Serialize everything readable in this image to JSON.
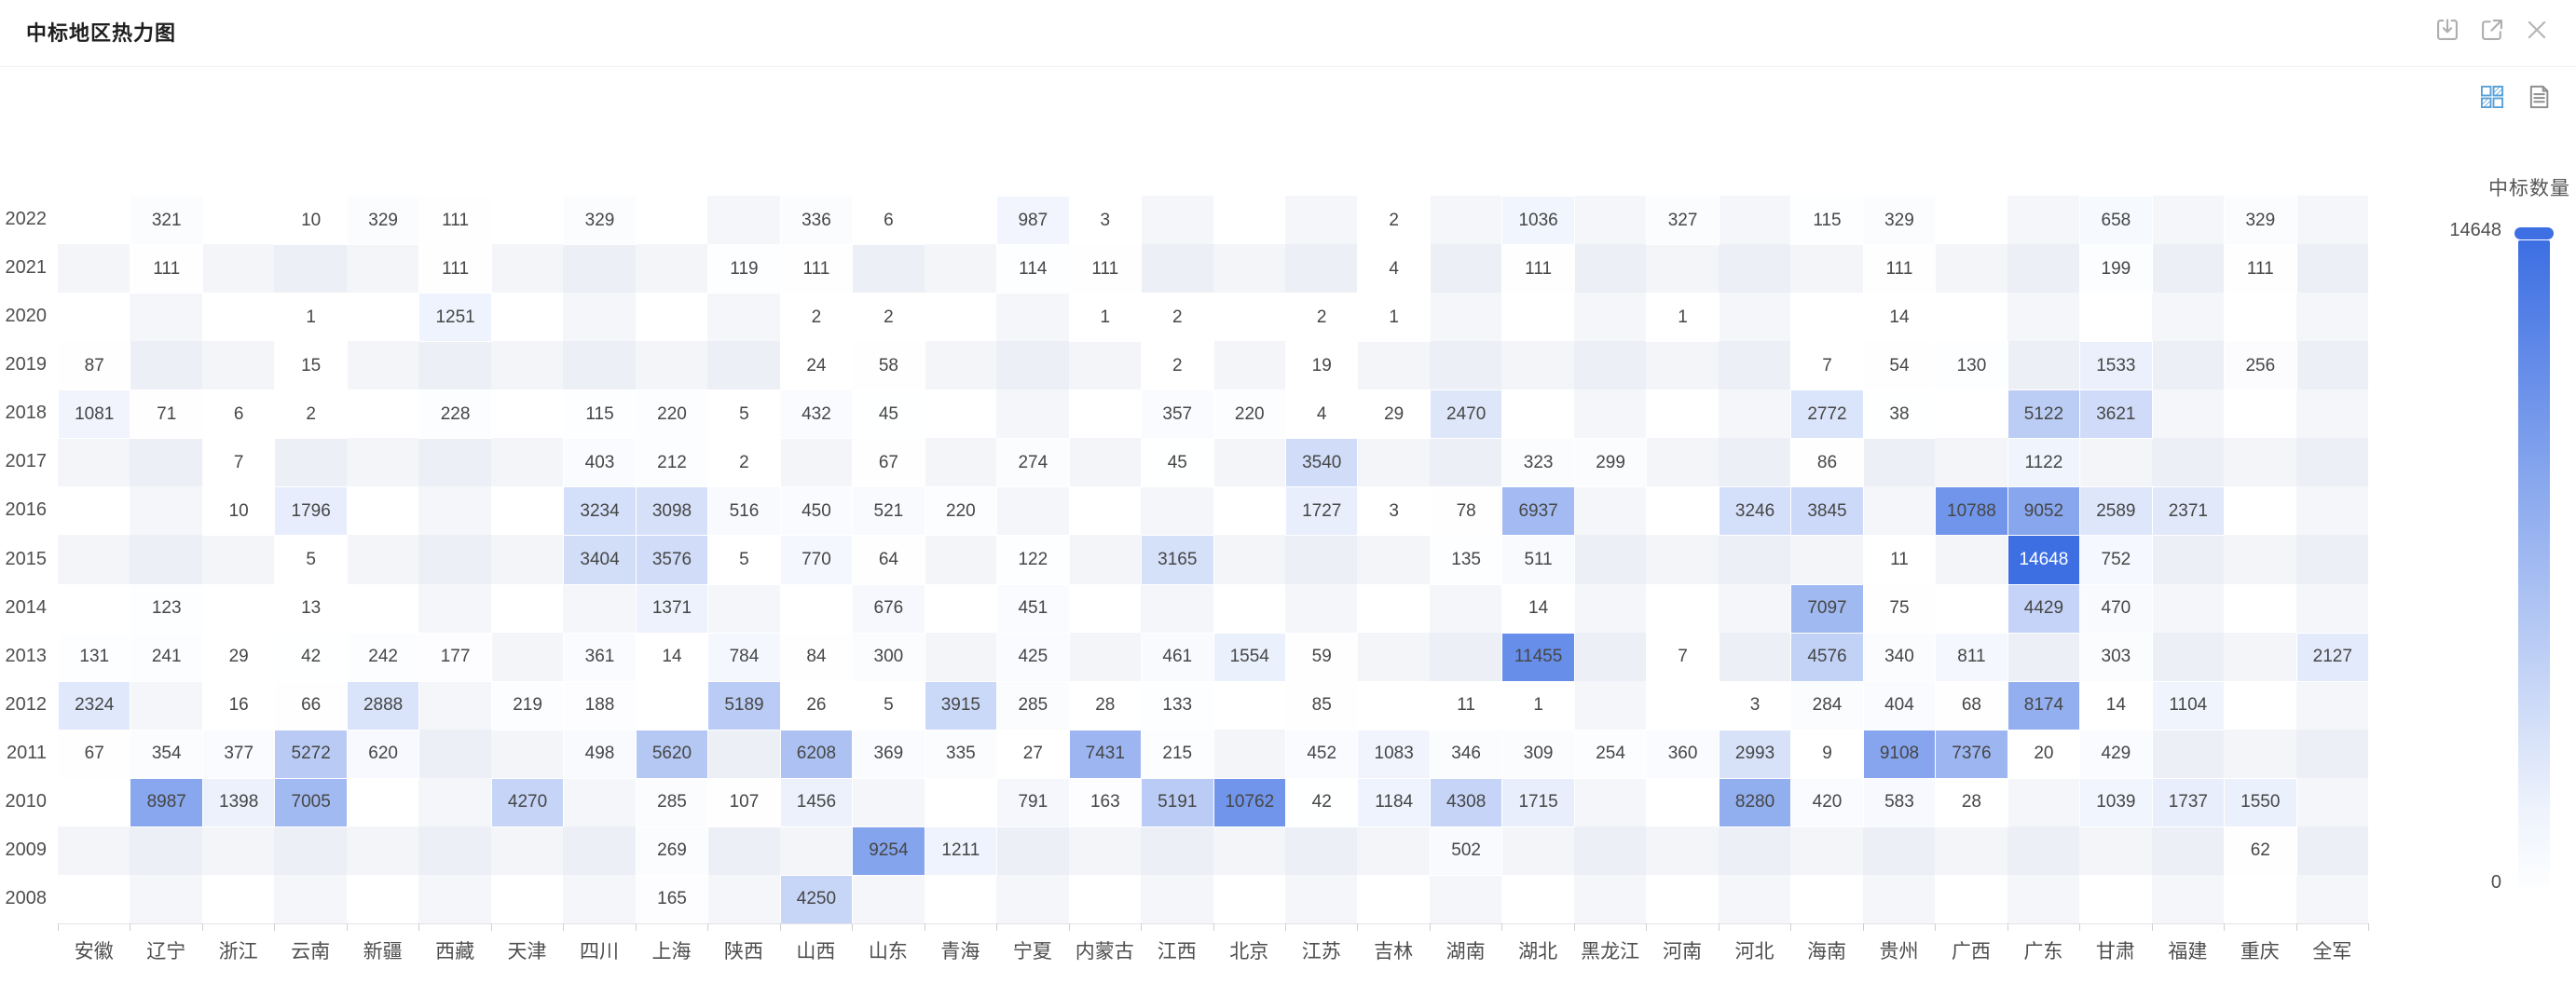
{
  "header": {
    "title": "中标地区热力图",
    "icons": [
      {
        "name": "download-icon"
      },
      {
        "name": "external-link-icon"
      },
      {
        "name": "close-icon"
      }
    ]
  },
  "view_toggle": {
    "chart_view": {
      "name": "heatmap-view-icon",
      "active": true
    },
    "data_view": {
      "name": "data-view-icon",
      "active": false
    }
  },
  "chart_data": {
    "type": "heatmap",
    "title": "中标地区热力图",
    "x_categories": [
      "安徽",
      "辽宁",
      "浙江",
      "云南",
      "新疆",
      "西藏",
      "天津",
      "四川",
      "上海",
      "陕西",
      "山西",
      "山东",
      "青海",
      "宁夏",
      "内蒙古",
      "江西",
      "北京",
      "江苏",
      "吉林",
      "湖南",
      "湖北",
      "黑龙江",
      "河南",
      "河北",
      "海南",
      "贵州",
      "广西",
      "广东",
      "甘肃",
      "福建",
      "重庆",
      "全军"
    ],
    "y_categories": [
      "2022",
      "2021",
      "2020",
      "2019",
      "2018",
      "2017",
      "2016",
      "2015",
      "2014",
      "2013",
      "2012",
      "2011",
      "2010",
      "2009",
      "2008"
    ],
    "values": [
      [
        null,
        321,
        null,
        10,
        329,
        111,
        null,
        329,
        null,
        null,
        336,
        6,
        null,
        987,
        3,
        null,
        null,
        null,
        2,
        null,
        1036,
        null,
        327,
        null,
        115,
        329,
        null,
        null,
        658,
        null,
        329,
        null
      ],
      [
        null,
        111,
        null,
        null,
        null,
        111,
        null,
        null,
        null,
        119,
        111,
        null,
        null,
        114,
        111,
        null,
        null,
        null,
        4,
        null,
        111,
        null,
        null,
        null,
        null,
        111,
        null,
        null,
        199,
        null,
        111,
        null
      ],
      [
        null,
        null,
        null,
        1,
        null,
        1251,
        null,
        null,
        null,
        null,
        2,
        2,
        null,
        null,
        1,
        2,
        null,
        2,
        1,
        null,
        null,
        null,
        1,
        null,
        null,
        14,
        null,
        null,
        null,
        null,
        null,
        null
      ],
      [
        87,
        null,
        null,
        15,
        null,
        null,
        null,
        null,
        null,
        null,
        24,
        58,
        null,
        null,
        null,
        2,
        null,
        19,
        null,
        null,
        null,
        null,
        null,
        null,
        7,
        54,
        130,
        null,
        1533,
        null,
        256,
        null
      ],
      [
        1081,
        71,
        6,
        2,
        null,
        228,
        null,
        115,
        220,
        5,
        432,
        45,
        null,
        null,
        null,
        357,
        220,
        4,
        29,
        2470,
        null,
        null,
        null,
        null,
        2772,
        38,
        null,
        5122,
        3621,
        null,
        null,
        null
      ],
      [
        null,
        null,
        7,
        null,
        null,
        null,
        null,
        403,
        212,
        2,
        null,
        67,
        null,
        274,
        null,
        45,
        null,
        3540,
        null,
        null,
        323,
        299,
        null,
        null,
        86,
        null,
        null,
        1122,
        null,
        null,
        null,
        null
      ],
      [
        null,
        null,
        10,
        1796,
        null,
        null,
        null,
        3234,
        3098,
        516,
        450,
        521,
        220,
        null,
        null,
        null,
        null,
        1727,
        3,
        78,
        6937,
        null,
        null,
        3246,
        3845,
        null,
        10788,
        9052,
        2589,
        2371,
        null,
        null
      ],
      [
        null,
        null,
        null,
        5,
        null,
        null,
        null,
        3404,
        3576,
        5,
        770,
        64,
        null,
        122,
        null,
        3165,
        null,
        null,
        null,
        135,
        511,
        null,
        null,
        null,
        null,
        11,
        null,
        14648,
        752,
        null,
        null,
        null
      ],
      [
        null,
        123,
        null,
        13,
        null,
        null,
        null,
        null,
        1371,
        null,
        null,
        676,
        null,
        451,
        null,
        null,
        null,
        null,
        null,
        null,
        14,
        null,
        null,
        null,
        7097,
        75,
        null,
        4429,
        470,
        null,
        null,
        null
      ],
      [
        131,
        241,
        29,
        42,
        242,
        177,
        null,
        361,
        14,
        784,
        84,
        300,
        null,
        425,
        null,
        461,
        1554,
        59,
        null,
        null,
        11455,
        null,
        7,
        null,
        4576,
        340,
        811,
        null,
        303,
        null,
        null,
        2127
      ],
      [
        2324,
        null,
        16,
        66,
        2888,
        null,
        219,
        188,
        null,
        5189,
        26,
        5,
        3915,
        285,
        28,
        133,
        null,
        85,
        null,
        11,
        1,
        null,
        null,
        3,
        284,
        404,
        68,
        8174,
        14,
        1104,
        null,
        null
      ],
      [
        67,
        354,
        377,
        5272,
        620,
        null,
        null,
        498,
        5620,
        null,
        6208,
        369,
        335,
        27,
        7431,
        215,
        null,
        452,
        1083,
        346,
        309,
        254,
        360,
        2993,
        9,
        9108,
        7376,
        20,
        429,
        null,
        null,
        null
      ],
      [
        null,
        8987,
        1398,
        7005,
        null,
        null,
        4270,
        null,
        285,
        107,
        1456,
        null,
        null,
        791,
        163,
        5191,
        10762,
        42,
        1184,
        4308,
        1715,
        null,
        null,
        8280,
        420,
        583,
        28,
        null,
        1039,
        1737,
        1550,
        null
      ],
      [
        null,
        null,
        null,
        null,
        null,
        null,
        null,
        null,
        269,
        null,
        null,
        9254,
        1211,
        null,
        null,
        null,
        null,
        null,
        null,
        502,
        null,
        null,
        null,
        null,
        null,
        null,
        null,
        null,
        null,
        null,
        62,
        null
      ],
      [
        null,
        null,
        null,
        null,
        null,
        null,
        null,
        null,
        165,
        null,
        4250,
        null,
        null,
        null,
        null,
        null,
        null,
        null,
        null,
        null,
        null,
        null,
        null,
        null,
        null,
        null,
        null,
        null,
        null,
        null,
        null,
        null
      ]
    ],
    "visual_map": {
      "label": "中标数量",
      "max": 14648,
      "min": 0,
      "max_color": "#3D6FE3",
      "min_color": "#FFFFFF",
      "handle_color": "#3E6FE3",
      "white_label_threshold": 13000
    },
    "layout_hints": {
      "legend_position": "right",
      "grid": "split-area-stripes",
      "cell_label_color": "#464646"
    }
  }
}
